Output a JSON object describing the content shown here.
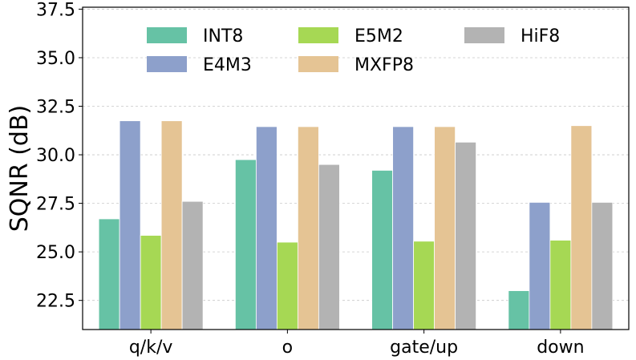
{
  "chart_data": {
    "type": "bar",
    "title": "",
    "xlabel": "",
    "ylabel": "SQNR (dB)",
    "categories": [
      "q/k/v",
      "o",
      "gate/up",
      "down"
    ],
    "ylim": [
      21.0,
      37.6
    ],
    "yticks": [
      "22.5",
      "25.0",
      "27.5",
      "30.0",
      "32.5",
      "35.0",
      "37.5"
    ],
    "grid": "horizontal dashed",
    "legend_position": "top",
    "series": [
      {
        "name": "INT8",
        "color": "#66c2a5",
        "values": [
          26.7,
          29.75,
          29.2,
          23.0
        ]
      },
      {
        "name": "E4M3",
        "color": "#8da0cb",
        "values": [
          31.75,
          31.45,
          31.45,
          27.55
        ]
      },
      {
        "name": "E5M2",
        "color": "#a6d854",
        "values": [
          25.85,
          25.5,
          25.55,
          25.6
        ]
      },
      {
        "name": "MXFP8",
        "color": "#e5c494",
        "values": [
          31.75,
          31.45,
          31.45,
          31.5
        ]
      },
      {
        "name": "HiF8",
        "color": "#b3b3b3",
        "values": [
          27.6,
          29.5,
          30.65,
          27.55
        ]
      }
    ]
  }
}
